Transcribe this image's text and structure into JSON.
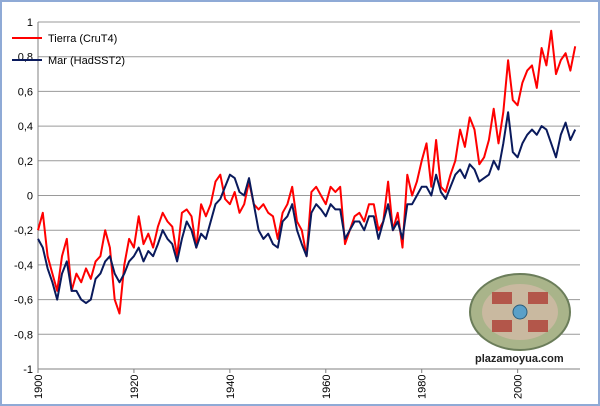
{
  "chart_data": {
    "type": "line",
    "title": "",
    "xlabel": "",
    "ylabel": "",
    "xlim": [
      1900,
      2013
    ],
    "ylim": [
      -1,
      1
    ],
    "x_ticks": [
      "1900",
      "1920",
      "1940",
      "1960",
      "1980",
      "2000"
    ],
    "y_ticks": [
      "-1",
      "-0,8",
      "-0,6",
      "-0,4",
      "-0,2",
      "0",
      "0,2",
      "0,4",
      "0,6",
      "0,8",
      "1"
    ],
    "grid": "horizontal",
    "legend_position": "top-left",
    "series": [
      {
        "name": "Tierra (CruT4)",
        "color": "#ff0000",
        "points": [
          [
            1900,
            -0.2
          ],
          [
            1901,
            -0.1
          ],
          [
            1902,
            -0.35
          ],
          [
            1903,
            -0.45
          ],
          [
            1904,
            -0.55
          ],
          [
            1905,
            -0.35
          ],
          [
            1906,
            -0.25
          ],
          [
            1907,
            -0.55
          ],
          [
            1908,
            -0.45
          ],
          [
            1909,
            -0.5
          ],
          [
            1910,
            -0.42
          ],
          [
            1911,
            -0.48
          ],
          [
            1912,
            -0.38
          ],
          [
            1913,
            -0.35
          ],
          [
            1914,
            -0.2
          ],
          [
            1915,
            -0.3
          ],
          [
            1916,
            -0.6
          ],
          [
            1917,
            -0.68
          ],
          [
            1918,
            -0.4
          ],
          [
            1919,
            -0.25
          ],
          [
            1920,
            -0.3
          ],
          [
            1921,
            -0.12
          ],
          [
            1922,
            -0.28
          ],
          [
            1923,
            -0.22
          ],
          [
            1924,
            -0.3
          ],
          [
            1925,
            -0.18
          ],
          [
            1926,
            -0.1
          ],
          [
            1927,
            -0.15
          ],
          [
            1928,
            -0.18
          ],
          [
            1929,
            -0.35
          ],
          [
            1930,
            -0.1
          ],
          [
            1931,
            -0.08
          ],
          [
            1932,
            -0.12
          ],
          [
            1933,
            -0.3
          ],
          [
            1934,
            -0.05
          ],
          [
            1935,
            -0.12
          ],
          [
            1936,
            -0.05
          ],
          [
            1937,
            0.08
          ],
          [
            1938,
            0.12
          ],
          [
            1939,
            -0.02
          ],
          [
            1940,
            -0.05
          ],
          [
            1941,
            0.02
          ],
          [
            1942,
            -0.1
          ],
          [
            1943,
            -0.05
          ],
          [
            1944,
            0.08
          ],
          [
            1945,
            -0.05
          ],
          [
            1946,
            -0.08
          ],
          [
            1947,
            -0.05
          ],
          [
            1948,
            -0.1
          ],
          [
            1949,
            -0.12
          ],
          [
            1950,
            -0.25
          ],
          [
            1951,
            -0.1
          ],
          [
            1952,
            -0.05
          ],
          [
            1953,
            0.05
          ],
          [
            1954,
            -0.15
          ],
          [
            1955,
            -0.2
          ],
          [
            1956,
            -0.35
          ],
          [
            1957,
            0.02
          ],
          [
            1958,
            0.05
          ],
          [
            1959,
            0.0
          ],
          [
            1960,
            -0.05
          ],
          [
            1961,
            0.05
          ],
          [
            1962,
            0.02
          ],
          [
            1963,
            0.05
          ],
          [
            1964,
            -0.28
          ],
          [
            1965,
            -0.2
          ],
          [
            1966,
            -0.12
          ],
          [
            1967,
            -0.1
          ],
          [
            1968,
            -0.15
          ],
          [
            1969,
            -0.05
          ],
          [
            1970,
            -0.05
          ],
          [
            1971,
            -0.2
          ],
          [
            1972,
            -0.15
          ],
          [
            1973,
            0.08
          ],
          [
            1974,
            -0.2
          ],
          [
            1975,
            -0.1
          ],
          [
            1976,
            -0.3
          ],
          [
            1977,
            0.12
          ],
          [
            1978,
            0.0
          ],
          [
            1979,
            0.08
          ],
          [
            1980,
            0.2
          ],
          [
            1981,
            0.3
          ],
          [
            1982,
            0.05
          ],
          [
            1983,
            0.32
          ],
          [
            1984,
            0.05
          ],
          [
            1985,
            0.02
          ],
          [
            1986,
            0.12
          ],
          [
            1987,
            0.2
          ],
          [
            1988,
            0.38
          ],
          [
            1989,
            0.28
          ],
          [
            1990,
            0.45
          ],
          [
            1991,
            0.38
          ],
          [
            1992,
            0.18
          ],
          [
            1993,
            0.22
          ],
          [
            1994,
            0.32
          ],
          [
            1995,
            0.5
          ],
          [
            1996,
            0.3
          ],
          [
            1997,
            0.48
          ],
          [
            1998,
            0.78
          ],
          [
            1999,
            0.55
          ],
          [
            2000,
            0.52
          ],
          [
            2001,
            0.65
          ],
          [
            2002,
            0.72
          ],
          [
            2003,
            0.75
          ],
          [
            2004,
            0.62
          ],
          [
            2005,
            0.85
          ],
          [
            2006,
            0.75
          ],
          [
            2007,
            0.95
          ],
          [
            2008,
            0.7
          ],
          [
            2009,
            0.78
          ],
          [
            2010,
            0.82
          ],
          [
            2011,
            0.72
          ],
          [
            2012,
            0.86
          ]
        ]
      },
      {
        "name": "Mar (HadSST2)",
        "color": "#0a1a5c",
        "points": [
          [
            1900,
            -0.25
          ],
          [
            1901,
            -0.3
          ],
          [
            1902,
            -0.42
          ],
          [
            1903,
            -0.5
          ],
          [
            1904,
            -0.6
          ],
          [
            1905,
            -0.45
          ],
          [
            1906,
            -0.38
          ],
          [
            1907,
            -0.55
          ],
          [
            1908,
            -0.55
          ],
          [
            1909,
            -0.6
          ],
          [
            1910,
            -0.62
          ],
          [
            1911,
            -0.6
          ],
          [
            1912,
            -0.48
          ],
          [
            1913,
            -0.45
          ],
          [
            1914,
            -0.38
          ],
          [
            1915,
            -0.35
          ],
          [
            1916,
            -0.45
          ],
          [
            1917,
            -0.5
          ],
          [
            1918,
            -0.45
          ],
          [
            1919,
            -0.38
          ],
          [
            1920,
            -0.35
          ],
          [
            1921,
            -0.3
          ],
          [
            1922,
            -0.38
          ],
          [
            1923,
            -0.32
          ],
          [
            1924,
            -0.35
          ],
          [
            1925,
            -0.28
          ],
          [
            1926,
            -0.2
          ],
          [
            1927,
            -0.25
          ],
          [
            1928,
            -0.28
          ],
          [
            1929,
            -0.38
          ],
          [
            1930,
            -0.25
          ],
          [
            1931,
            -0.15
          ],
          [
            1932,
            -0.2
          ],
          [
            1933,
            -0.3
          ],
          [
            1934,
            -0.22
          ],
          [
            1935,
            -0.25
          ],
          [
            1936,
            -0.15
          ],
          [
            1937,
            -0.05
          ],
          [
            1938,
            -0.02
          ],
          [
            1939,
            0.05
          ],
          [
            1940,
            0.12
          ],
          [
            1941,
            0.1
          ],
          [
            1942,
            0.02
          ],
          [
            1943,
            0.0
          ],
          [
            1944,
            0.1
          ],
          [
            1945,
            -0.05
          ],
          [
            1946,
            -0.2
          ],
          [
            1947,
            -0.25
          ],
          [
            1948,
            -0.22
          ],
          [
            1949,
            -0.28
          ],
          [
            1950,
            -0.3
          ],
          [
            1951,
            -0.15
          ],
          [
            1952,
            -0.12
          ],
          [
            1953,
            -0.05
          ],
          [
            1954,
            -0.2
          ],
          [
            1955,
            -0.28
          ],
          [
            1956,
            -0.35
          ],
          [
            1957,
            -0.1
          ],
          [
            1958,
            -0.05
          ],
          [
            1959,
            -0.08
          ],
          [
            1960,
            -0.12
          ],
          [
            1961,
            -0.05
          ],
          [
            1962,
            -0.08
          ],
          [
            1963,
            -0.08
          ],
          [
            1964,
            -0.25
          ],
          [
            1965,
            -0.2
          ],
          [
            1966,
            -0.15
          ],
          [
            1967,
            -0.15
          ],
          [
            1968,
            -0.2
          ],
          [
            1969,
            -0.12
          ],
          [
            1970,
            -0.12
          ],
          [
            1971,
            -0.25
          ],
          [
            1972,
            -0.15
          ],
          [
            1973,
            -0.05
          ],
          [
            1974,
            -0.2
          ],
          [
            1975,
            -0.15
          ],
          [
            1976,
            -0.25
          ],
          [
            1977,
            -0.05
          ],
          [
            1978,
            -0.05
          ],
          [
            1979,
            0.0
          ],
          [
            1980,
            0.05
          ],
          [
            1981,
            0.05
          ],
          [
            1982,
            0.0
          ],
          [
            1983,
            0.12
          ],
          [
            1984,
            0.02
          ],
          [
            1985,
            -0.02
          ],
          [
            1986,
            0.05
          ],
          [
            1987,
            0.12
          ],
          [
            1988,
            0.15
          ],
          [
            1989,
            0.1
          ],
          [
            1990,
            0.18
          ],
          [
            1991,
            0.15
          ],
          [
            1992,
            0.08
          ],
          [
            1993,
            0.1
          ],
          [
            1994,
            0.12
          ],
          [
            1995,
            0.2
          ],
          [
            1996,
            0.15
          ],
          [
            1997,
            0.3
          ],
          [
            1998,
            0.48
          ],
          [
            1999,
            0.25
          ],
          [
            2000,
            0.22
          ],
          [
            2001,
            0.3
          ],
          [
            2002,
            0.35
          ],
          [
            2003,
            0.38
          ],
          [
            2004,
            0.35
          ],
          [
            2005,
            0.4
          ],
          [
            2006,
            0.38
          ],
          [
            2007,
            0.3
          ],
          [
            2008,
            0.22
          ],
          [
            2009,
            0.35
          ],
          [
            2010,
            0.42
          ],
          [
            2011,
            0.32
          ],
          [
            2012,
            0.38
          ]
        ]
      }
    ]
  },
  "watermark": {
    "text": "plazamoyua.com"
  }
}
